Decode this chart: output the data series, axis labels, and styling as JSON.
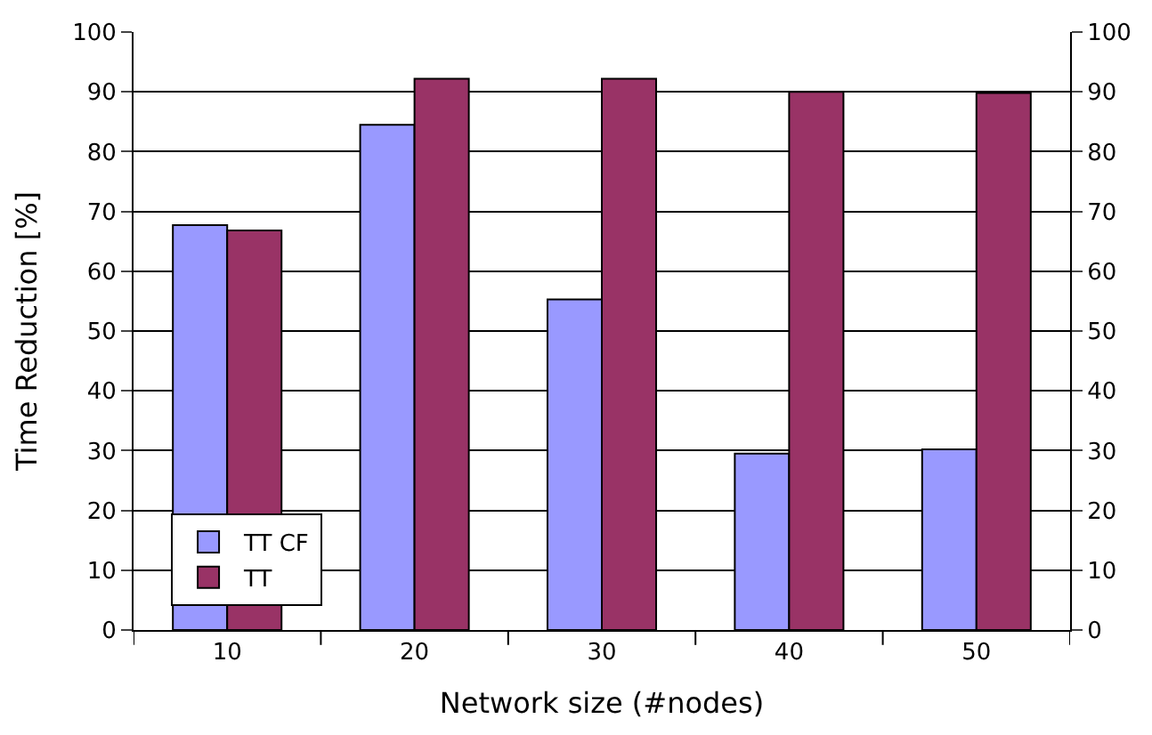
{
  "chart_data": {
    "type": "bar",
    "xlabel": "Network size (#nodes)",
    "ylabel": "Time Reduction [%]",
    "categories": [
      "10",
      "20",
      "30",
      "40",
      "50"
    ],
    "series": [
      {
        "name": "TT CF",
        "color": "#9999ff",
        "values": [
          67.7,
          84.5,
          55.3,
          29.5,
          30.2
        ]
      },
      {
        "name": "TT",
        "color": "#993366",
        "values": [
          66.8,
          92.2,
          92.2,
          90,
          89.8
        ]
      }
    ],
    "ylim": [
      0,
      100
    ],
    "yticks": [
      0,
      10,
      20,
      30,
      40,
      50,
      60,
      70,
      80,
      90,
      100
    ],
    "y2lim": [
      0,
      100
    ],
    "y2ticks": [
      0,
      10,
      20,
      30,
      40,
      50,
      60,
      70,
      80,
      90,
      100
    ],
    "grid": "y",
    "legend": "bottom left"
  }
}
